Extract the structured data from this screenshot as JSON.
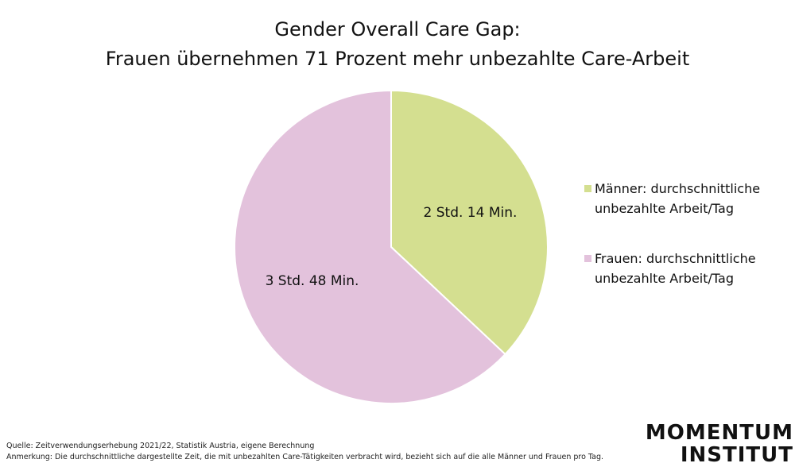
{
  "chart_data": {
    "type": "pie",
    "title": [
      "Gender Overall Care Gap:",
      "Frauen übernehmen 71 Prozent mehr unbezahlte Care-Arbeit"
    ],
    "categories": [
      "Männer: durchschnittliche unbezahlte Arbeit/Tag",
      "Frauen: durchschnittliche unbezahlte Arbeit/Tag"
    ],
    "values": [
      134,
      228
    ],
    "value_labels": [
      "2 Std. 14 Min.",
      "3 Std. 48 Min."
    ],
    "colors": [
      "#d4df90",
      "#e3c2dc"
    ],
    "legend": "right"
  },
  "footer": {
    "source": "Quelle: Zeitverwendungserhebung 2021/22, Statistik Austria, eigene Berechnung",
    "note": "Anmerkung: Die durchschnittliche dargestellte Zeit, die mit unbezahlten Care-Tätigkeiten verbracht wird, bezieht sich auf die alle Männer und Frauen pro Tag."
  },
  "logo": [
    "MOMENTUM",
    "INSTITUT"
  ]
}
